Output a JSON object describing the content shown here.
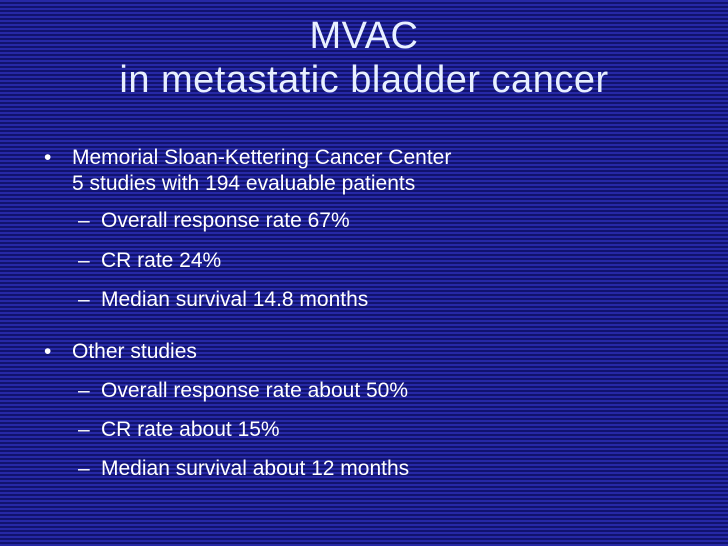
{
  "slide": {
    "title_line1": "MVAC",
    "title_line2": "in metastatic bladder cancer",
    "bullet_marker": "•",
    "sub_marker": "–",
    "section1": {
      "line1": "Memorial Sloan-Kettering Cancer Center",
      "line2": "5 studies with 194 evaluable patients",
      "items": [
        "Overall response rate 67%",
        "CR rate 24%",
        "Median survival 14.8 months"
      ]
    },
    "section2": {
      "line1": "Other studies",
      "items": [
        "Overall response rate about 50%",
        "CR rate about 15%",
        "Median survival about 12 months"
      ]
    }
  }
}
